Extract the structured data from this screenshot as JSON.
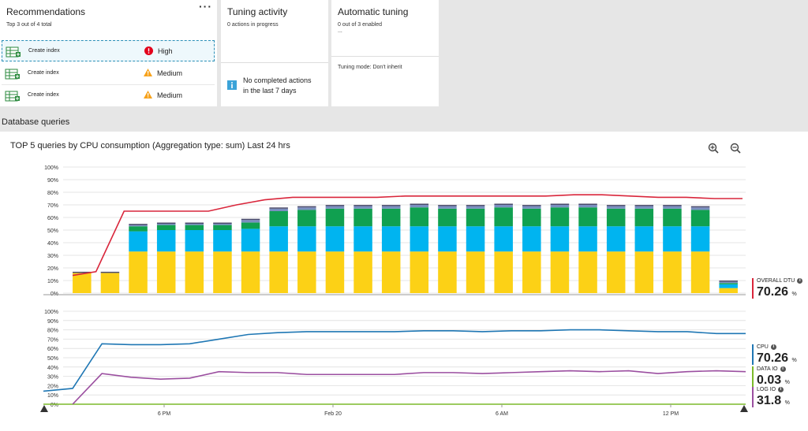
{
  "recommendations": {
    "title": "Recommendations",
    "subtitle": "Top 3 out of 4 total",
    "more": "···",
    "items": [
      {
        "action": "Create index",
        "severity": "High"
      },
      {
        "action": "Create index",
        "severity": "Medium"
      },
      {
        "action": "Create index",
        "severity": "Medium"
      }
    ]
  },
  "tuning_activity": {
    "title": "Tuning activity",
    "subtitle": "0 actions in progress",
    "info_line1": "No completed actions",
    "info_line2": "in the last 7 days"
  },
  "automatic_tuning": {
    "title": "Automatic tuning",
    "subtitle": "0 out of 3 enabled",
    "ellipsis": "...",
    "mode": "Tuning mode: Don't inherit"
  },
  "section_label": "Database queries",
  "chart_title": "TOP 5 queries by CPU consumption (Aggregation type: sum) Last 24 hrs",
  "legend": {
    "overall_dtu": {
      "label": "OVERALL DTU",
      "value": "70.26",
      "unit": "%",
      "color": "#d9263b"
    },
    "cpu": {
      "label": "CPU",
      "value": "70.26",
      "unit": "%",
      "color": "#1f77b4"
    },
    "data_io": {
      "label": "DATA IO",
      "value": "0.03",
      "unit": "%",
      "color": "#7cba2a"
    },
    "log_io": {
      "label": "LOG IO",
      "value": "31.8",
      "unit": "%",
      "color": "#9b4fa0"
    }
  },
  "chart_data": [
    {
      "type": "bar",
      "title": "TOP 5 queries by CPU consumption (Aggregation type: sum) Last 24 hrs",
      "y_ticks": [
        "100%",
        "90%",
        "80%",
        "70%",
        "60%",
        "50%",
        "40%",
        "30%",
        "20%",
        "10%",
        "0%"
      ],
      "ylim": [
        0,
        100
      ],
      "bars": [
        [
          16,
          0,
          0,
          0
        ],
        [
          16,
          0,
          0,
          0
        ],
        [
          33,
          16,
          4,
          1
        ],
        [
          33,
          17,
          4,
          1
        ],
        [
          33,
          17,
          4,
          1
        ],
        [
          33,
          17,
          4,
          1
        ],
        [
          33,
          18,
          5,
          2
        ],
        [
          33,
          20,
          12,
          2
        ],
        [
          33,
          20,
          13,
          2
        ],
        [
          33,
          20,
          14,
          2
        ],
        [
          33,
          20,
          14,
          2
        ],
        [
          33,
          20,
          14,
          2
        ],
        [
          33,
          20,
          15,
          2
        ],
        [
          33,
          20,
          14,
          2
        ],
        [
          33,
          20,
          14,
          2
        ],
        [
          33,
          20,
          15,
          2
        ],
        [
          33,
          20,
          14,
          2
        ],
        [
          33,
          20,
          15,
          2
        ],
        [
          33,
          20,
          15,
          2
        ],
        [
          33,
          20,
          14,
          2
        ],
        [
          33,
          20,
          14,
          2
        ],
        [
          33,
          20,
          14,
          2
        ],
        [
          33,
          20,
          13,
          2
        ],
        [
          4,
          3,
          1,
          1
        ]
      ],
      "series_colors": [
        "#fcd116",
        "#00b4f0",
        "#10a050",
        "#7a8fc0"
      ],
      "overall_dtu_line": [
        14,
        17,
        65,
        65,
        65,
        65,
        70,
        74,
        76,
        76,
        76,
        76,
        77,
        77,
        77,
        77,
        77,
        77,
        78,
        78,
        77,
        76,
        76,
        75,
        75
      ]
    },
    {
      "type": "line",
      "y_ticks": [
        "100%",
        "90%",
        "80%",
        "70%",
        "60%",
        "50%",
        "40%",
        "30%",
        "20%",
        "10%",
        "0%"
      ],
      "ylim": [
        0,
        100
      ],
      "x_tick_labels": [
        "6 PM",
        "Feb 20",
        "6 AM",
        "12 PM"
      ],
      "series": [
        {
          "name": "CPU",
          "color": "#1f77b4",
          "values": [
            14,
            17,
            65,
            64,
            64,
            65,
            70,
            75,
            77,
            78,
            78,
            78,
            78,
            79,
            79,
            78,
            79,
            79,
            80,
            80,
            79,
            78,
            78,
            76,
            76
          ]
        },
        {
          "name": "DATA IO",
          "color": "#7cba2a",
          "values": [
            0,
            0,
            0,
            0,
            0,
            0,
            0,
            0,
            0,
            0,
            0,
            0,
            0,
            0,
            0,
            0,
            0,
            0,
            0,
            0,
            0,
            0,
            0,
            0,
            0
          ]
        },
        {
          "name": "LOG IO",
          "color": "#9b4fa0",
          "values": [
            null,
            0,
            33,
            29,
            27,
            28,
            35,
            34,
            34,
            32,
            32,
            32,
            32,
            34,
            34,
            33,
            34,
            35,
            36,
            35,
            36,
            33,
            35,
            36,
            35
          ]
        }
      ]
    }
  ]
}
